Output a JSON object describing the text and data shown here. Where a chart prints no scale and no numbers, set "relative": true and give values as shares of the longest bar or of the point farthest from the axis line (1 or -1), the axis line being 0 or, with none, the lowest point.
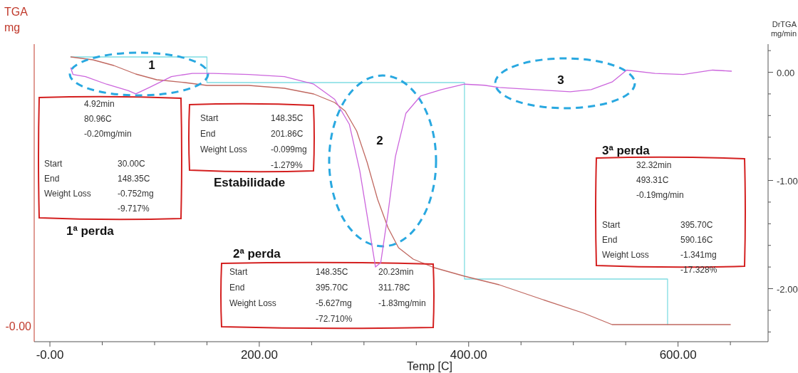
{
  "chart_data": [
    {
      "type": "line",
      "relative": true,
      "xlabel": "Temp [C]",
      "ylabel": "TGA mg",
      "xlim": [
        -15,
        686
      ],
      "xticks": [
        {
          "value": 0,
          "label": "-0.00"
        },
        {
          "value": 50,
          "label": null
        },
        {
          "value": 100,
          "label": null
        },
        {
          "value": 150,
          "label": null
        },
        {
          "value": 200,
          "label": "200.00"
        },
        {
          "value": 250,
          "label": null
        },
        {
          "value": 300,
          "label": null
        },
        {
          "value": 350,
          "label": null
        },
        {
          "value": 400,
          "label": "400.00"
        },
        {
          "value": 450,
          "label": null
        },
        {
          "value": 500,
          "label": null
        },
        {
          "value": 550,
          "label": null
        },
        {
          "value": 600,
          "label": "600.00"
        },
        {
          "value": 650,
          "label": null
        }
      ],
      "marker": "none",
      "line_style": "solid",
      "series": [
        {
          "color": "#c06860",
          "x": [
            20,
            41,
            61,
            82,
            102,
            129,
            150,
            190,
            224,
            252,
            272,
            282,
            293,
            303,
            313,
            323,
            333,
            347,
            367,
            396,
            429,
            469,
            510,
            537,
            565,
            592,
            633,
            650
          ],
          "values": [
            1,
            0.99,
            0.97,
            0.94,
            0.92,
            0.91,
            0.9,
            0.9,
            0.89,
            0.87,
            0.84,
            0.81,
            0.74,
            0.63,
            0.5,
            0.4,
            0.33,
            0.29,
            0.26,
            0.23,
            0.2,
            0.15,
            0.1,
            0.06,
            0.06,
            0.06,
            0.06,
            0.06
          ]
        },
        {
          "color": "#80dde2",
          "x": [
            20,
            150,
            150,
            396,
            396,
            590,
            590
          ],
          "values": [
            1,
            1,
            0.91,
            0.91,
            0.22,
            0.22,
            0.06
          ]
        }
      ],
      "annotations": [
        "1",
        "2",
        "3",
        "-0.00",
        "4.92min\n80.96C\n-0.20mg/min\n\nStart\t30.00C\nEnd\t148.35C\nWeight Loss\t-0.752mg\n\t-9.717%",
        "Start\t148.35C\nEnd\t201.86C\nWeight Loss\t-0.099mg\n\t-1.279%",
        "Start\t148.35C\t20.23min\nEnd\t395.70C\t311.78C\nWeight Loss\t-5.627mg\t-1.83mg/min\n\t-72.710%",
        "32.32min\n493.31C\n-0.19mg/min\n\nStart\t395.70C\nEnd\t590.16C\nWeight Loss\t-1.341mg\n\t-17.328%",
        "1ª perda",
        "Estabilidade",
        "2ª perda",
        "3ª perda"
      ]
    },
    {
      "type": "line",
      "y2label": "DrTGA mg/min",
      "xlim": [
        -15,
        686
      ],
      "tick_labels": "y",
      "y2lim": [
        -2.49,
        0.26
      ],
      "y2ticks": [
        {
          "value": 0.2,
          "label": null
        },
        {
          "value": 0,
          "label": "0.00"
        },
        {
          "value": -0.2,
          "label": null
        },
        {
          "value": -0.4,
          "label": null
        },
        {
          "value": -0.6,
          "label": null
        },
        {
          "value": -0.8,
          "label": null
        },
        {
          "value": -1,
          "label": "-1.00"
        },
        {
          "value": -1.2,
          "label": null
        },
        {
          "value": -1.4,
          "label": null
        },
        {
          "value": -1.6,
          "label": null
        },
        {
          "value": -1.8,
          "label": null
        },
        {
          "value": -2,
          "label": "-2.00"
        },
        {
          "value": -2.2,
          "label": null
        },
        {
          "value": -2.4,
          "label": null
        }
      ],
      "marker": "none",
      "line_style": "solid",
      "series": [
        {
          "color": "#cc66dd",
          "axis": "y2",
          "x": [
            20,
            22,
            34,
            54,
            75,
            82,
            95,
            116,
            136,
            156,
            190,
            224,
            252,
            272,
            286,
            296,
            306,
            311,
            316,
            323,
            330,
            340,
            354,
            374,
            396,
            415,
            429,
            463,
            497,
            517,
            537,
            551,
            578,
            605,
            633,
            651
          ],
          "values": [
            0.04,
            -0.02,
            -0.04,
            -0.11,
            -0.17,
            -0.2,
            -0.14,
            -0.04,
            -0.01,
            -0.01,
            -0.02,
            -0.04,
            -0.11,
            -0.25,
            -0.48,
            -0.91,
            -1.5,
            -1.8,
            -1.76,
            -1.3,
            -0.78,
            -0.38,
            -0.22,
            -0.16,
            -0.11,
            -0.12,
            -0.14,
            -0.16,
            -0.18,
            -0.16,
            -0.09,
            0.02,
            -0.01,
            -0.02,
            0.02,
            0.01
          ]
        }
      ]
    }
  ]
}
